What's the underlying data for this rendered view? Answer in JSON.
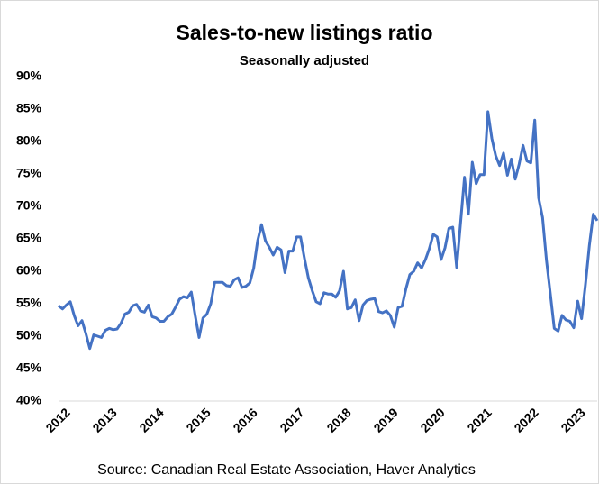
{
  "chart_data": {
    "type": "line",
    "title": "Sales-to-new listings ratio",
    "subtitle": "Seasonally adjusted",
    "source": "Source: Canadian Real Estate Association, Haver Analytics",
    "categories": [
      "2012",
      null,
      null,
      null,
      null,
      null,
      null,
      null,
      null,
      null,
      null,
      null,
      "2013",
      null,
      null,
      null,
      null,
      null,
      null,
      null,
      null,
      null,
      null,
      null,
      "2014",
      null,
      null,
      null,
      null,
      null,
      null,
      null,
      null,
      null,
      null,
      null,
      "2015",
      null,
      null,
      null,
      null,
      null,
      null,
      null,
      null,
      null,
      null,
      null,
      "2016",
      null,
      null,
      null,
      null,
      null,
      null,
      null,
      null,
      null,
      null,
      null,
      "2017",
      null,
      null,
      null,
      null,
      null,
      null,
      null,
      null,
      null,
      null,
      null,
      "2018",
      null,
      null,
      null,
      null,
      null,
      null,
      null,
      null,
      null,
      null,
      null,
      "2019",
      null,
      null,
      null,
      null,
      null,
      null,
      null,
      null,
      null,
      null,
      null,
      "2020",
      null,
      null,
      null,
      null,
      null,
      null,
      null,
      null,
      null,
      null,
      null,
      "2021",
      null,
      null,
      null,
      null,
      null,
      null,
      null,
      null,
      null,
      null,
      null,
      "2022",
      null,
      null,
      null,
      null,
      null,
      null,
      null,
      null,
      null,
      null,
      null,
      "2023",
      null,
      null,
      null,
      null,
      null,
      null
    ],
    "series": [
      {
        "name": "Sales-to-new listings ratio",
        "color": "#4472c4",
        "values": [
          54.7,
          54.2,
          54.8,
          55.3,
          53.2,
          51.6,
          52.4,
          50.4,
          48.1,
          50.2,
          50.0,
          49.8,
          50.9,
          51.2,
          51.0,
          51.1,
          52.0,
          53.4,
          53.7,
          54.7,
          54.9,
          53.9,
          53.7,
          54.8,
          53.0,
          52.8,
          52.3,
          52.3,
          53.0,
          53.4,
          54.5,
          55.7,
          56.1,
          55.9,
          56.8,
          53.2,
          49.8,
          52.8,
          53.4,
          55.0,
          58.3,
          58.3,
          58.3,
          57.8,
          57.7,
          58.7,
          59.0,
          57.5,
          57.7,
          58.2,
          60.5,
          64.7,
          67.2,
          64.7,
          63.7,
          62.5,
          63.7,
          63.3,
          59.8,
          63.1,
          63.1,
          65.3,
          65.3,
          62.0,
          59.0,
          57.0,
          55.3,
          55.0,
          56.7,
          56.5,
          56.5,
          56.0,
          57.0,
          60.0,
          54.2,
          54.4,
          55.6,
          52.4,
          54.8,
          55.5,
          55.7,
          55.8,
          53.8,
          53.6,
          53.9,
          53.2,
          51.4,
          54.4,
          54.6,
          57.3,
          59.5,
          60.0,
          61.3,
          60.5,
          61.8,
          63.5,
          65.7,
          65.3,
          61.8,
          63.6,
          66.6,
          66.8,
          60.6,
          67.5,
          74.5,
          68.8,
          76.8,
          73.5,
          74.9,
          74.9,
          84.6,
          80.5,
          77.8,
          76.3,
          78.2,
          74.8,
          77.3,
          74.2,
          76.5,
          79.4,
          77.0,
          76.7,
          83.3,
          71.3,
          68.3,
          61.7,
          56.5,
          51.2,
          50.8,
          53.2,
          52.5,
          52.3,
          51.3,
          55.4,
          52.7,
          58.0,
          64.0,
          68.8,
          67.8
        ]
      }
    ],
    "ylim": [
      40,
      90
    ],
    "yticks": [
      {
        "value": 40,
        "label": "40%"
      },
      {
        "value": 45,
        "label": "45%"
      },
      {
        "value": 50,
        "label": "50%"
      },
      {
        "value": 55,
        "label": "55%"
      },
      {
        "value": 60,
        "label": "60%"
      },
      {
        "value": 65,
        "label": "65%"
      },
      {
        "value": 70,
        "label": "70%"
      },
      {
        "value": 75,
        "label": "75%"
      },
      {
        "value": 80,
        "label": "80%"
      },
      {
        "value": 85,
        "label": "85%"
      },
      {
        "value": 90,
        "label": "90%"
      }
    ]
  }
}
